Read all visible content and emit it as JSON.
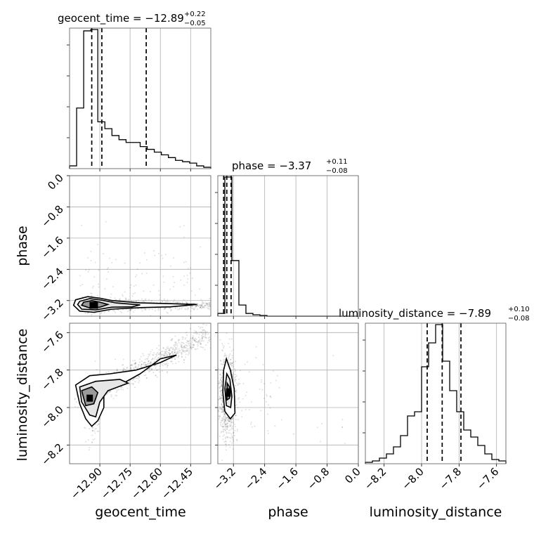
{
  "chart_data": {
    "type": "corner",
    "parameters": [
      {
        "name": "geocent_time",
        "axis_label": "geocent_time",
        "title": {
          "prefix": "geocent_time = ",
          "median": "−12.89",
          "plus": "+0.22",
          "minus": "−0.05"
        },
        "range": [
          -13.05,
          -12.35
        ],
        "ticks": [
          -12.9,
          -12.75,
          -12.6,
          -12.45
        ],
        "tick_labels": [
          "−12.90",
          "−12.75",
          "−12.60",
          "−12.45"
        ],
        "quantiles": [
          -12.94,
          -12.89,
          -12.67
        ],
        "hist": {
          "edges": [
            -13.05,
            -13.015,
            -12.98,
            -12.945,
            -12.91,
            -12.875,
            -12.84,
            -12.805,
            -12.77,
            -12.735,
            -12.7,
            -12.665,
            -12.63,
            -12.595,
            -12.56,
            -12.525,
            -12.49,
            -12.455,
            -12.42,
            -12.385,
            -12.35
          ],
          "counts": [
            0.02,
            0.44,
            1.0,
            1.01,
            0.34,
            0.29,
            0.24,
            0.21,
            0.19,
            0.19,
            0.16,
            0.14,
            0.12,
            0.1,
            0.08,
            0.06,
            0.05,
            0.04,
            0.02,
            0.01
          ]
        }
      },
      {
        "name": "phase",
        "axis_label": "phase",
        "title": {
          "prefix": "phase = ",
          "median": "−3.37",
          "plus": "+0.11",
          "minus": "−0.08"
        },
        "range": [
          -3.6,
          0.0
        ],
        "ticks": [
          -3.2,
          -2.4,
          -1.6,
          -0.8,
          0.0
        ],
        "tick_labels": [
          "−3.2",
          "−2.4",
          "−1.6",
          "−0.8",
          "0.0"
        ],
        "quantiles": [
          -3.45,
          -3.37,
          -3.26
        ],
        "hist": {
          "edges": [
            -3.6,
            -3.42,
            -3.24,
            -3.06,
            -2.88,
            -2.7,
            -2.52,
            -2.34,
            -2.16,
            -1.98,
            -1.8,
            -1.62,
            -1.44,
            -1.26,
            -1.08,
            -0.9,
            -0.72,
            -0.54,
            -0.36,
            -0.18,
            0.0
          ],
          "counts": [
            0.02,
            1.0,
            0.4,
            0.08,
            0.02,
            0.01,
            0.005,
            0.0,
            0.0,
            0.0,
            0.0,
            0.0,
            0.0,
            0.0,
            0.0,
            0.0,
            0.0,
            0.0,
            0.0,
            0.0
          ]
        }
      },
      {
        "name": "luminosity_distance",
        "axis_label": "luminosity_distance",
        "title": {
          "prefix": "luminosity_distance = ",
          "median": "−7.89",
          "plus": "+0.10",
          "minus": "−0.08"
        },
        "range": [
          -8.3,
          -7.55
        ],
        "ticks": [
          -8.2,
          -8.0,
          -7.8,
          -7.6
        ],
        "tick_labels": [
          "−8.2",
          "−8.0",
          "−7.8",
          "−7.6"
        ],
        "quantiles": [
          -7.97,
          -7.89,
          -7.79
        ],
        "hist": {
          "edges": [
            -8.3,
            -8.2625,
            -8.225,
            -8.1875,
            -8.15,
            -8.1125,
            -8.075,
            -8.0375,
            -8.0,
            -7.9625,
            -7.925,
            -7.8875,
            -7.85,
            -7.8125,
            -7.775,
            -7.7375,
            -7.7,
            -7.6625,
            -7.625,
            -7.5875,
            -7.55
          ],
          "counts": [
            0.01,
            0.02,
            0.04,
            0.07,
            0.12,
            0.2,
            0.34,
            0.37,
            0.69,
            0.86,
            0.99,
            0.73,
            0.52,
            0.37,
            0.24,
            0.19,
            0.13,
            0.07,
            0.03,
            0.02
          ]
        }
      }
    ],
    "scatter_density": [
      {
        "x": "geocent_time",
        "y": "phase",
        "peak": [
          -12.93,
          -3.32
        ],
        "shape": "elongated tail toward +x"
      },
      {
        "x": "geocent_time",
        "y": "luminosity_distance",
        "peak": [
          -12.95,
          -7.95
        ],
        "shape": "diagonal band rising to the right"
      },
      {
        "x": "phase",
        "y": "luminosity_distance",
        "peak": [
          -3.33,
          -7.92
        ],
        "shape": "narrow vertical blob"
      }
    ]
  }
}
